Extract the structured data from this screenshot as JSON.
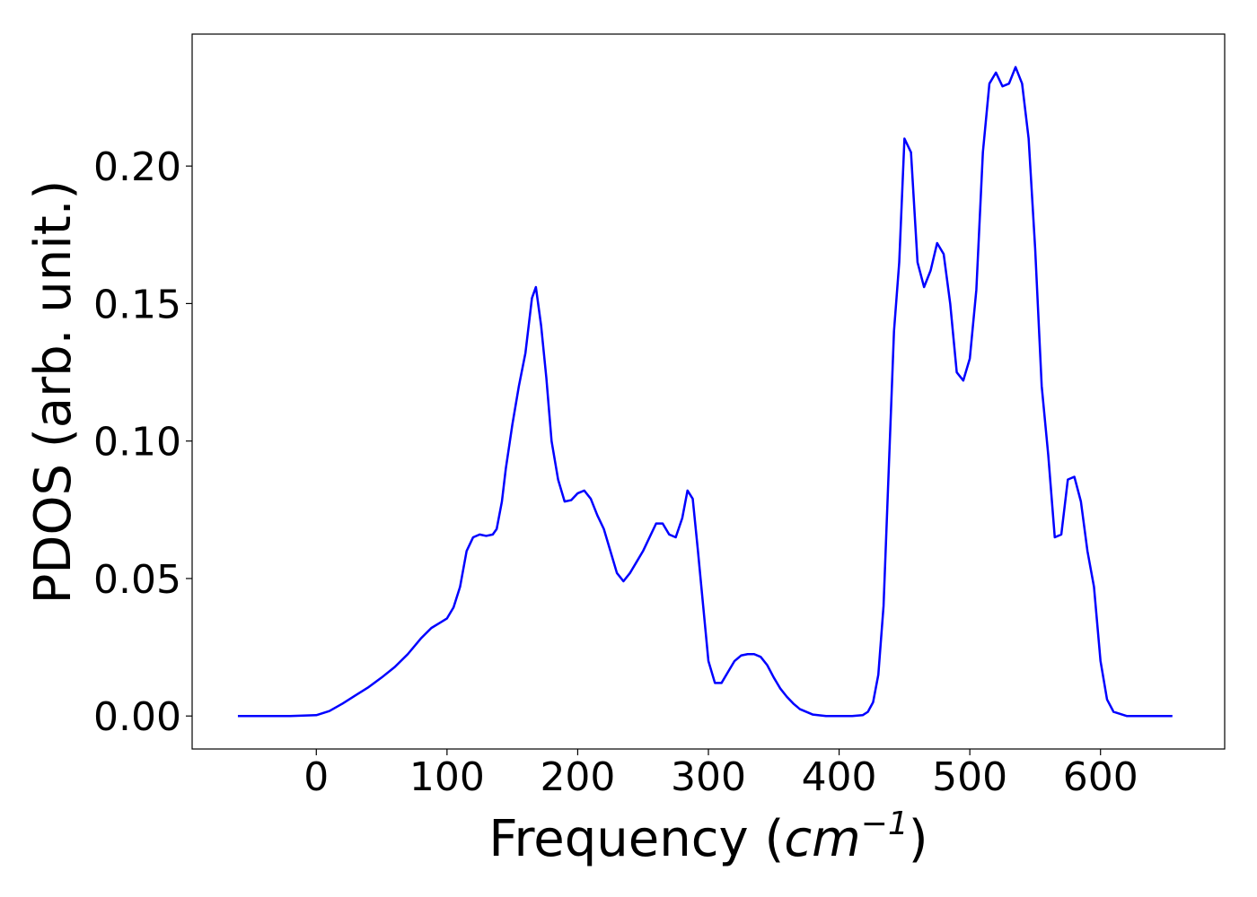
{
  "chart_data": {
    "type": "line",
    "title": "",
    "xlabel": "Frequency (",
    "xlabel_unit": "cm",
    "xlabel_exp": "−1",
    "xlabel_close": ")",
    "ylabel": "PDOS (arb. unit.)",
    "xlim": [
      -95,
      695
    ],
    "ylim": [
      -0.012,
      0.248
    ],
    "xticks": [
      0,
      100,
      200,
      300,
      400,
      500,
      600
    ],
    "xtick_labels": [
      "0",
      "100",
      "200",
      "300",
      "400",
      "500",
      "600"
    ],
    "yticks": [
      0.0,
      0.05,
      0.1,
      0.15,
      0.2
    ],
    "ytick_labels": [
      "0.00",
      "0.05",
      "0.10",
      "0.15",
      "0.20"
    ],
    "grid": false,
    "series": [
      {
        "color": "#0000ff",
        "x": [
          -60,
          -40,
          -20,
          0,
          10,
          20,
          30,
          40,
          50,
          60,
          70,
          80,
          88,
          95,
          100,
          105,
          110,
          115,
          120,
          125,
          130,
          135,
          138,
          142,
          145,
          150,
          155,
          160,
          165,
          168,
          172,
          176,
          180,
          185,
          190,
          195,
          200,
          205,
          210,
          215,
          220,
          225,
          230,
          235,
          240,
          245,
          250,
          255,
          260,
          265,
          270,
          275,
          280,
          284,
          288,
          292,
          296,
          300,
          305,
          310,
          315,
          320,
          325,
          330,
          335,
          340,
          345,
          350,
          355,
          360,
          365,
          370,
          380,
          390,
          400,
          410,
          418,
          422,
          426,
          430,
          434,
          438,
          442,
          446,
          450,
          455,
          460,
          465,
          470,
          475,
          480,
          485,
          490,
          495,
          500,
          505,
          510,
          515,
          520,
          525,
          530,
          535,
          540,
          545,
          550,
          555,
          560,
          565,
          570,
          575,
          580,
          585,
          590,
          595,
          600,
          605,
          610,
          620,
          640,
          655
        ],
        "y": [
          0.0,
          0.0,
          0.0,
          0.0003,
          0.0018,
          0.0045,
          0.0075,
          0.0105,
          0.014,
          0.0178,
          0.0225,
          0.0282,
          0.032,
          0.034,
          0.0355,
          0.0395,
          0.047,
          0.06,
          0.065,
          0.066,
          0.0655,
          0.066,
          0.068,
          0.078,
          0.09,
          0.106,
          0.12,
          0.132,
          0.152,
          0.156,
          0.142,
          0.123,
          0.1,
          0.086,
          0.078,
          0.0785,
          0.081,
          0.082,
          0.079,
          0.073,
          0.068,
          0.06,
          0.052,
          0.049,
          0.052,
          0.056,
          0.06,
          0.065,
          0.07,
          0.07,
          0.066,
          0.065,
          0.072,
          0.082,
          0.079,
          0.06,
          0.04,
          0.02,
          0.012,
          0.012,
          0.016,
          0.02,
          0.022,
          0.0225,
          0.0225,
          0.0215,
          0.0185,
          0.014,
          0.01,
          0.007,
          0.0045,
          0.0025,
          0.0005,
          0.0,
          0.0,
          0.0,
          0.0003,
          0.0015,
          0.005,
          0.015,
          0.04,
          0.09,
          0.14,
          0.165,
          0.21,
          0.205,
          0.165,
          0.156,
          0.162,
          0.172,
          0.168,
          0.15,
          0.125,
          0.122,
          0.13,
          0.155,
          0.205,
          0.23,
          0.234,
          0.229,
          0.23,
          0.236,
          0.23,
          0.21,
          0.17,
          0.12,
          0.095,
          0.065,
          0.066,
          0.086,
          0.087,
          0.078,
          0.06,
          0.047,
          0.02,
          0.006,
          0.0015,
          0.0,
          0.0,
          0.0
        ]
      }
    ]
  }
}
